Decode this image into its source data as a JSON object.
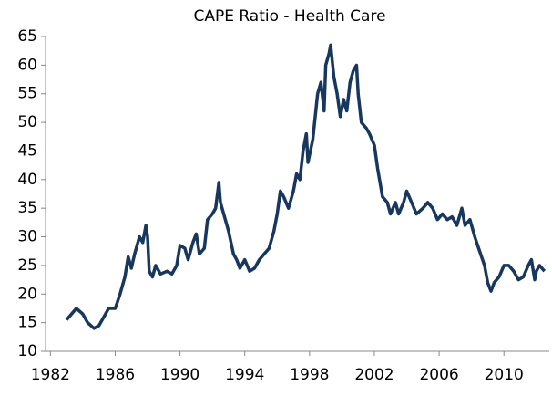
{
  "chart_data": {
    "type": "line",
    "title": "CAPE Ratio - Health Care",
    "x": [
      1983.0,
      1983.3,
      1983.6,
      1984.0,
      1984.3,
      1984.7,
      1985.0,
      1985.3,
      1985.6,
      1986.0,
      1986.3,
      1986.6,
      1986.8,
      1987.0,
      1987.2,
      1987.5,
      1987.7,
      1987.9,
      1988.0,
      1988.1,
      1988.3,
      1988.5,
      1988.8,
      1989.2,
      1989.5,
      1989.8,
      1990.0,
      1990.3,
      1990.5,
      1990.8,
      1991.0,
      1991.2,
      1991.5,
      1991.7,
      1992.0,
      1992.2,
      1992.4,
      1992.5,
      1992.7,
      1993.0,
      1993.3,
      1993.5,
      1993.7,
      1994.0,
      1994.3,
      1994.6,
      1994.9,
      1995.2,
      1995.5,
      1995.8,
      1996.0,
      1996.2,
      1996.4,
      1996.7,
      1997.0,
      1997.2,
      1997.4,
      1997.6,
      1997.8,
      1997.9,
      1998.2,
      1998.5,
      1998.7,
      1998.9,
      1999.0,
      1999.2,
      1999.3,
      1999.5,
      1999.7,
      1999.9,
      2000.1,
      2000.3,
      2000.5,
      2000.7,
      2000.9,
      2001.0,
      2001.2,
      2001.5,
      2001.7,
      2002.0,
      2002.2,
      2002.5,
      2002.8,
      2003.0,
      2003.3,
      2003.5,
      2003.8,
      2004.0,
      2004.3,
      2004.6,
      2005.0,
      2005.3,
      2005.6,
      2005.9,
      2006.2,
      2006.5,
      2006.8,
      2007.1,
      2007.4,
      2007.6,
      2007.9,
      2008.2,
      2008.5,
      2008.8,
      2009.0,
      2009.2,
      2009.4,
      2009.7,
      2010.0,
      2010.3,
      2010.6,
      2010.9,
      2011.2,
      2011.5,
      2011.7,
      2011.9,
      2012.0,
      2012.2,
      2012.5
    ],
    "values": [
      15.5,
      16.5,
      17.5,
      16.5,
      15,
      14,
      14.5,
      16,
      17.5,
      17.5,
      20,
      23,
      26.5,
      24.5,
      27,
      30,
      29,
      32,
      30,
      24,
      23,
      25,
      23.5,
      24,
      23.5,
      25,
      28.5,
      28,
      26,
      29,
      30.5,
      27,
      28,
      33,
      34,
      35,
      39.5,
      36,
      34,
      31,
      27,
      26,
      24.5,
      26,
      24,
      24.5,
      26,
      27,
      28,
      31,
      34,
      38,
      37,
      35,
      38,
      41,
      40,
      45,
      48,
      43,
      47,
      55,
      57,
      52,
      60,
      62,
      63.5,
      58,
      55,
      51,
      54,
      52,
      57,
      59,
      60,
      55,
      50,
      49,
      48,
      46,
      42,
      37,
      36,
      34,
      36,
      34,
      36,
      38,
      36,
      34,
      35,
      36,
      35,
      33,
      34,
      33,
      33.5,
      32,
      35,
      32,
      33,
      30,
      27.5,
      25,
      22,
      20.5,
      22,
      23,
      25,
      25,
      24,
      22.5,
      23,
      25,
      26,
      22.5,
      24,
      25,
      24
    ],
    "color": "#17375e",
    "xlim": [
      1981.7,
      2012.8
    ],
    "xticks": [
      1982,
      1986,
      1990,
      1994,
      1998,
      2002,
      2006,
      2010
    ],
    "ylim": [
      10,
      65
    ],
    "yticks": [
      10,
      15,
      20,
      25,
      30,
      35,
      40,
      45,
      50,
      55,
      60,
      65
    ]
  }
}
